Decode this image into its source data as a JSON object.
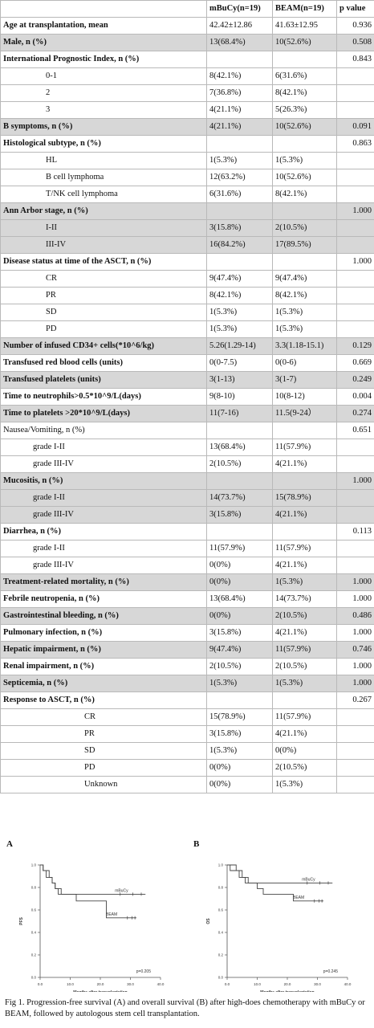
{
  "table": {
    "header": [
      "",
      "mBuCy(n=19)",
      "BEAM(n=19)",
      "p value"
    ],
    "rows": [
      {
        "label": "Age at transplantation, mean",
        "v1": "42.42±12.86",
        "v2": "41.63±12.95",
        "p": "0.936",
        "bold": true,
        "shade": false,
        "indent": 0
      },
      {
        "label": "Male, n (%)",
        "v1": "13(68.4%)",
        "v2": "10(52.6%)",
        "p": "0.508",
        "bold": true,
        "shade": true,
        "indent": 0
      },
      {
        "label": "International Prognostic Index, n (%)",
        "v1": "",
        "v2": "",
        "p": "0.843",
        "bold": true,
        "shade": false,
        "indent": 0
      },
      {
        "label": "0-1",
        "v1": "8(42.1%)",
        "v2": "6(31.6%)",
        "p": "",
        "bold": false,
        "shade": false,
        "indent": 1
      },
      {
        "label": "2",
        "v1": "7(36.8%)",
        "v2": "8(42.1%)",
        "p": "",
        "bold": false,
        "shade": false,
        "indent": 1
      },
      {
        "label": "3",
        "v1": "4(21.1%)",
        "v2": "5(26.3%)",
        "p": "",
        "bold": false,
        "shade": false,
        "indent": 1
      },
      {
        "label": "B symptoms, n (%)",
        "v1": "4(21.1%)",
        "v2": "10(52.6%)",
        "p": "0.091",
        "bold": true,
        "shade": true,
        "indent": 0
      },
      {
        "label": "Histological subtype, n (%)",
        "v1": "",
        "v2": "",
        "p": "0.863",
        "bold": true,
        "shade": false,
        "indent": 0
      },
      {
        "label": "HL",
        "v1": "1(5.3%)",
        "v2": "1(5.3%)",
        "p": "",
        "bold": false,
        "shade": false,
        "indent": 1
      },
      {
        "label": "B cell lymphoma",
        "v1": "12(63.2%)",
        "v2": "10(52.6%)",
        "p": "",
        "bold": false,
        "shade": false,
        "indent": 1
      },
      {
        "label": "T/NK cell lymphoma",
        "v1": "6(31.6%)",
        "v2": "8(42.1%)",
        "p": "",
        "bold": false,
        "shade": false,
        "indent": 1
      },
      {
        "label": "Ann Arbor stage, n (%)",
        "v1": "",
        "v2": "",
        "p": "1.000",
        "bold": true,
        "shade": true,
        "indent": 0
      },
      {
        "label": "I-II",
        "v1": "3(15.8%)",
        "v2": "2(10.5%)",
        "p": "",
        "bold": false,
        "shade": true,
        "indent": 1
      },
      {
        "label": "III-IV",
        "v1": "16(84.2%)",
        "v2": "17(89.5%)",
        "p": "",
        "bold": false,
        "shade": true,
        "indent": 1
      },
      {
        "label": "Disease status at time of the ASCT, n (%)",
        "v1": "",
        "v2": "",
        "p": "1.000",
        "bold": true,
        "shade": false,
        "indent": 0
      },
      {
        "label": "CR",
        "v1": "9(47.4%)",
        "v2": "9(47.4%)",
        "p": "",
        "bold": false,
        "shade": false,
        "indent": 1
      },
      {
        "label": "PR",
        "v1": "8(42.1%)",
        "v2": "8(42.1%)",
        "p": "",
        "bold": false,
        "shade": false,
        "indent": 1
      },
      {
        "label": "SD",
        "v1": "1(5.3%)",
        "v2": "1(5.3%)",
        "p": "",
        "bold": false,
        "shade": false,
        "indent": 1
      },
      {
        "label": "PD",
        "v1": "1(5.3%)",
        "v2": "1(5.3%)",
        "p": "",
        "bold": false,
        "shade": false,
        "indent": 1
      },
      {
        "label": "Number of infused CD34+ cells(*10^6/kg)",
        "v1": "5.26(1.29-14)",
        "v2": "3.3(1.18-15.1)",
        "p": "0.129",
        "bold": true,
        "shade": true,
        "indent": 0
      },
      {
        "label": "Transfused red blood cells (units)",
        "v1": "0(0-7.5)",
        "v2": "0(0-6)",
        "p": "0.669",
        "bold": true,
        "shade": false,
        "indent": 0
      },
      {
        "label": "Transfused platelets (units)",
        "v1": "3(1-13)",
        "v2": "3(1-7)",
        "p": "0.249",
        "bold": true,
        "shade": true,
        "indent": 0
      },
      {
        "label": "Time to neutrophils>0.5*10^9/L(days)",
        "v1": "9(8-10)",
        "v2": "10(8-12)",
        "p": "0.004",
        "bold": true,
        "shade": false,
        "indent": 0
      },
      {
        "label": "Time to platelets >20*10^9/L(days)",
        "v1": "11(7-16)",
        "v2": "11.5(9-24）",
        "p": "0.274",
        "bold": true,
        "shade": true,
        "indent": 0
      },
      {
        "label": "Nausea/Vomiting, n (%)",
        "v1": "",
        "v2": "",
        "p": "0.651",
        "bold": false,
        "shade": false,
        "indent": 0
      },
      {
        "label": "grade I-II",
        "v1": "13(68.4%)",
        "v2": "11(57.9%)",
        "p": "",
        "bold": false,
        "shade": false,
        "indent": 3
      },
      {
        "label": "grade III-IV",
        "v1": "2(10.5%)",
        "v2": "4(21.1%)",
        "p": "",
        "bold": false,
        "shade": false,
        "indent": 3
      },
      {
        "label": "Mucositis, n (%)",
        "v1": "",
        "v2": "",
        "p": "1.000",
        "bold": true,
        "shade": true,
        "indent": 0
      },
      {
        "label": "grade I-II",
        "v1": "14(73.7%)",
        "v2": "15(78.9%)",
        "p": "",
        "bold": false,
        "shade": true,
        "indent": 3
      },
      {
        "label": "grade III-IV",
        "v1": "3(15.8%)",
        "v2": "4(21.1%)",
        "p": "",
        "bold": false,
        "shade": true,
        "indent": 3
      },
      {
        "label": "Diarrhea, n (%)",
        "v1": "",
        "v2": "",
        "p": "0.113",
        "bold": true,
        "shade": false,
        "indent": 0
      },
      {
        "label": "grade I-II",
        "v1": "11(57.9%)",
        "v2": "11(57.9%)",
        "p": "",
        "bold": false,
        "shade": false,
        "indent": 3
      },
      {
        "label": "grade III-IV",
        "v1": "0(0%)",
        "v2": "4(21.1%)",
        "p": "",
        "bold": false,
        "shade": false,
        "indent": 3
      },
      {
        "label": "Treatment-related mortality, n (%)",
        "v1": "0(0%)",
        "v2": "1(5.3%)",
        "p": "1.000",
        "bold": true,
        "shade": true,
        "indent": 0
      },
      {
        "label": "Febrile neutropenia, n (%)",
        "v1": "13(68.4%)",
        "v2": "14(73.7%)",
        "p": "1.000",
        "bold": true,
        "shade": false,
        "indent": 0
      },
      {
        "label": "Gastrointestinal bleeding, n (%)",
        "v1": "0(0%)",
        "v2": "2(10.5%)",
        "p": "0.486",
        "bold": true,
        "shade": true,
        "indent": 0
      },
      {
        "label": "Pulmonary infection, n (%)",
        "v1": "3(15.8%)",
        "v2": "4(21.1%)",
        "p": "1.000",
        "bold": true,
        "shade": false,
        "indent": 0
      },
      {
        "label": "Hepatic impairment, n (%)",
        "v1": "9(47.4%)",
        "v2": "11(57.9%)",
        "p": "0.746",
        "bold": true,
        "shade": true,
        "indent": 0
      },
      {
        "label": "Renal impairment, n (%)",
        "v1": "2(10.5%)",
        "v2": "2(10.5%)",
        "p": "1.000",
        "bold": true,
        "shade": false,
        "indent": 0
      },
      {
        "label": "Septicemia, n (%)",
        "v1": "1(5.3%)",
        "v2": "1(5.3%)",
        "p": "1.000",
        "bold": true,
        "shade": true,
        "indent": 0
      },
      {
        "label": "Response to ASCT, n (%)",
        "v1": "",
        "v2": "",
        "p": "0.267",
        "bold": true,
        "shade": false,
        "indent": 0
      },
      {
        "label": "CR",
        "v1": "15(78.9%)",
        "v2": "11(57.9%)",
        "p": "",
        "bold": false,
        "shade": false,
        "indent": 2
      },
      {
        "label": "PR",
        "v1": "3(15.8%)",
        "v2": "4(21.1%)",
        "p": "",
        "bold": false,
        "shade": false,
        "indent": 2
      },
      {
        "label": "SD",
        "v1": "1(5.3%)",
        "v2": "0(0%)",
        "p": "",
        "bold": false,
        "shade": false,
        "indent": 2
      },
      {
        "label": "PD",
        "v1": "0(0%)",
        "v2": "2(10.5%)",
        "p": "",
        "bold": false,
        "shade": false,
        "indent": 2
      },
      {
        "label": "Unknown",
        "v1": "0(0%)",
        "v2": "1(5.3%)",
        "p": "",
        "bold": false,
        "shade": false,
        "indent": 2
      }
    ]
  },
  "chart_data": [
    {
      "type": "line",
      "panel": "A",
      "xlabel": "Months after transplantation",
      "ylabel": "PFS",
      "xlim": [
        0,
        40
      ],
      "ylim": [
        0,
        1.0
      ],
      "xticks": [
        "0.0",
        "10.0",
        "20.0",
        "30.0",
        "40.0"
      ],
      "yticks": [
        "0.0",
        "0.2",
        "0.4",
        "0.6",
        "0.8",
        "1.0"
      ],
      "annotation": "p=0.205",
      "series": [
        {
          "name": "mBuCy",
          "x": [
            0,
            1,
            2,
            3,
            4,
            5,
            6,
            7,
            35
          ],
          "y": [
            1.0,
            0.95,
            0.89,
            0.89,
            0.84,
            0.79,
            0.79,
            0.74,
            0.74
          ]
        },
        {
          "name": "BEAM",
          "x": [
            0,
            1,
            3,
            4,
            5,
            6,
            10,
            12,
            15,
            20,
            22,
            32
          ],
          "y": [
            1.0,
            0.95,
            0.89,
            0.84,
            0.79,
            0.74,
            0.74,
            0.68,
            0.68,
            0.68,
            0.53,
            0.53
          ]
        }
      ]
    },
    {
      "type": "line",
      "panel": "B",
      "xlabel": "Months after transplantation",
      "ylabel": "OS",
      "xlim": [
        0,
        40
      ],
      "ylim": [
        0,
        1.0
      ],
      "xticks": [
        "0.0",
        "10.0",
        "20.0",
        "30.0",
        "40.0"
      ],
      "yticks": [
        "0.0",
        "0.2",
        "0.4",
        "0.6",
        "0.8",
        "1.0"
      ],
      "annotation": "p=0.245",
      "series": [
        {
          "name": "mBuCy",
          "x": [
            0,
            3,
            5,
            7,
            35
          ],
          "y": [
            1.0,
            0.95,
            0.89,
            0.84,
            0.84
          ]
        },
        {
          "name": "BEAM",
          "x": [
            0,
            1,
            4,
            6,
            10,
            12,
            20,
            22,
            32
          ],
          "y": [
            1.0,
            0.95,
            0.89,
            0.84,
            0.79,
            0.74,
            0.74,
            0.68,
            0.68
          ]
        }
      ]
    }
  ],
  "caption": "Fig 1. Progression-free survival (A) and overall survival (B) after high-does chemotherapy with mBuCy or BEAM, followed by autologous stem cell transplantation."
}
